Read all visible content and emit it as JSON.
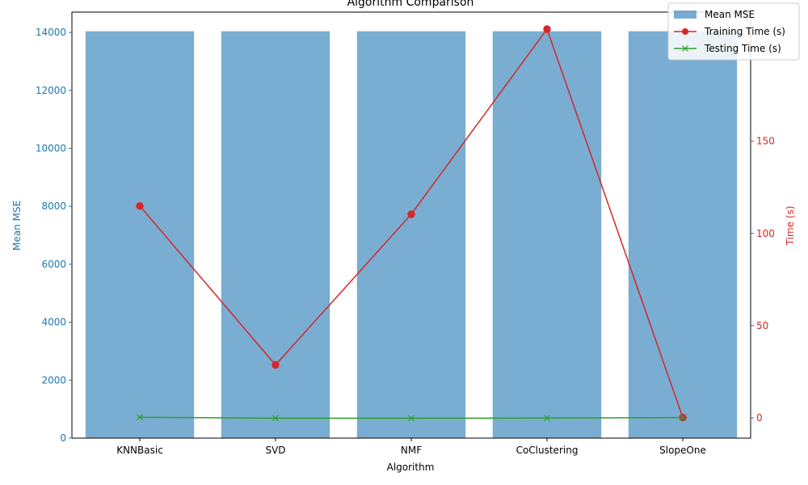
{
  "chart_data": {
    "type": "bar",
    "title": "Algorithm Comparison",
    "xlabel": "Algorithm",
    "ylabel_left": "Mean MSE",
    "ylabel_right": "Time (s)",
    "categories": [
      "KNNBasic",
      "SVD",
      "NMF",
      "CoClustering",
      "SlopeOne"
    ],
    "ylim_left": [
      0,
      14700
    ],
    "ylim_right": [
      -11,
      220
    ],
    "yticks_left": [
      0,
      2000,
      4000,
      6000,
      8000,
      10000,
      12000,
      14000
    ],
    "yticks_right": [
      0,
      50,
      100,
      150,
      200
    ],
    "series": [
      {
        "name": "Mean MSE",
        "type": "bar",
        "axis": "left",
        "color": "#1f77b4",
        "values": [
          14040,
          14040,
          14040,
          14040,
          14040
        ]
      },
      {
        "name": "Training Time (s)",
        "type": "line",
        "axis": "right",
        "marker": "circle",
        "color": "#d62728",
        "values": [
          114.9,
          28.7,
          110.4,
          210.8,
          0.2
        ]
      },
      {
        "name": "Testing Time (s)",
        "type": "line",
        "axis": "right",
        "marker": "x",
        "color": "#2ca02c",
        "values": [
          0.3,
          -0.2,
          -0.2,
          -0.1,
          0.1
        ]
      }
    ],
    "legend_position": "top-right",
    "grid": false,
    "left_axis_color": "#1f77b4",
    "right_axis_color": "#d62728"
  }
}
